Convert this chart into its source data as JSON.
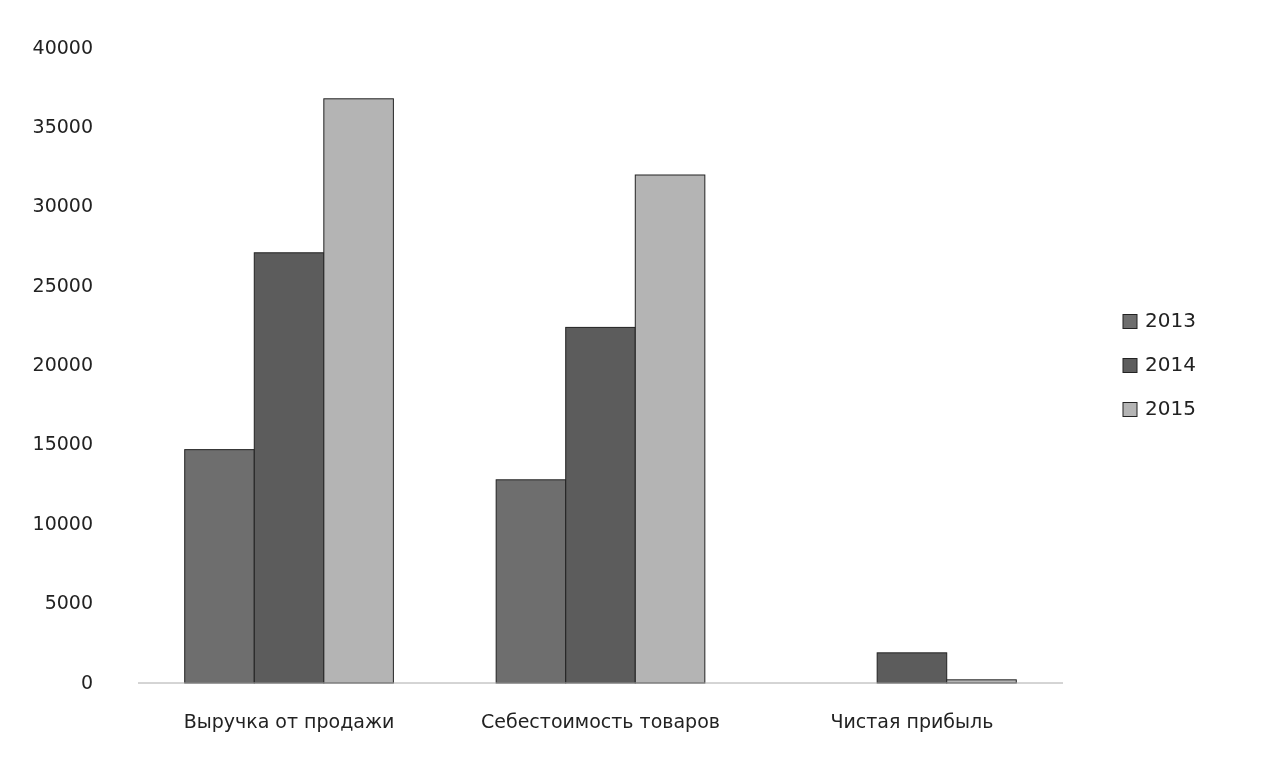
{
  "chart_data": {
    "type": "bar",
    "categories": [
      "Выручка от продажи",
      "Себестоимость товаров",
      "Чистая прибыль"
    ],
    "series": [
      {
        "name": "2013",
        "color": "#6e6e6e",
        "values": [
          14700,
          12800,
          0
        ]
      },
      {
        "name": "2014",
        "color": "#5c5c5c",
        "values": [
          27100,
          22400,
          1900
        ]
      },
      {
        "name": "2015",
        "color": "#b4b4b4",
        "values": [
          36800,
          32000,
          200
        ]
      }
    ],
    "ylim": [
      0,
      40000
    ],
    "yticks": [
      0,
      5000,
      10000,
      15000,
      20000,
      25000,
      30000,
      35000,
      40000
    ],
    "grid": false,
    "legend": "right"
  }
}
